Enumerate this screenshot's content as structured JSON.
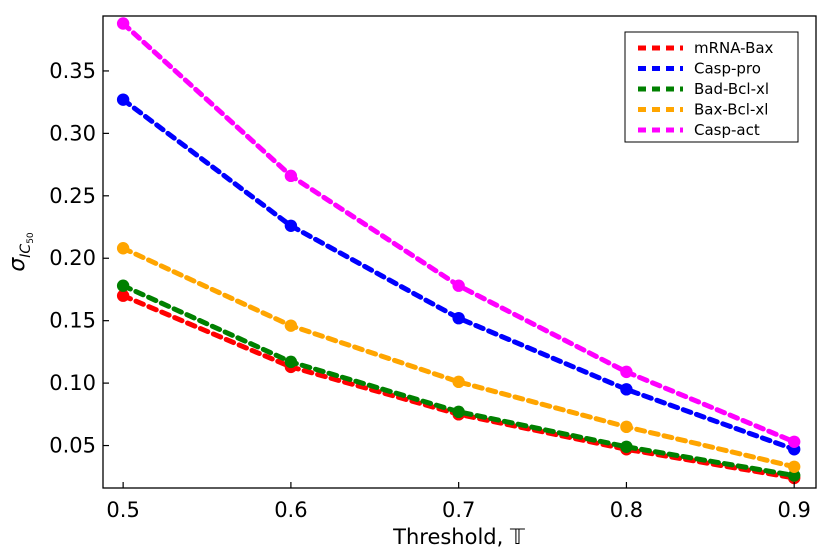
{
  "chart_data": {
    "type": "line",
    "title": "",
    "xlabel": "Threshold, 𝕋",
    "ylabel_symbol": "σ",
    "ylabel_sub": "IC",
    "ylabel_subsub": "50",
    "x": [
      0.5,
      0.6,
      0.7,
      0.8,
      0.9
    ],
    "xlim": [
      0.488,
      0.913
    ],
    "ylim": [
      0.016,
      0.394
    ],
    "xticks": [
      "0.5",
      "0.6",
      "0.7",
      "0.8",
      "0.9"
    ],
    "yticks": [
      "0.05",
      "0.10",
      "0.15",
      "0.20",
      "0.25",
      "0.30",
      "0.35"
    ],
    "legend_position": "top-right",
    "grid": false,
    "series": [
      {
        "name": "mRNA-Bax",
        "color": "#ff0000",
        "values": [
          0.17,
          0.113,
          0.075,
          0.047,
          0.024
        ]
      },
      {
        "name": "Casp-pro",
        "color": "#0000ff",
        "values": [
          0.327,
          0.226,
          0.152,
          0.095,
          0.047
        ]
      },
      {
        "name": "Bad-Bcl-xl",
        "color": "#008000",
        "values": [
          0.178,
          0.117,
          0.077,
          0.049,
          0.026
        ]
      },
      {
        "name": "Bax-Bcl-xl",
        "color": "#ffa500",
        "values": [
          0.208,
          0.146,
          0.101,
          0.065,
          0.033
        ]
      },
      {
        "name": "Casp-act",
        "color": "#ff00ff",
        "values": [
          0.388,
          0.266,
          0.178,
          0.109,
          0.053
        ]
      }
    ]
  }
}
